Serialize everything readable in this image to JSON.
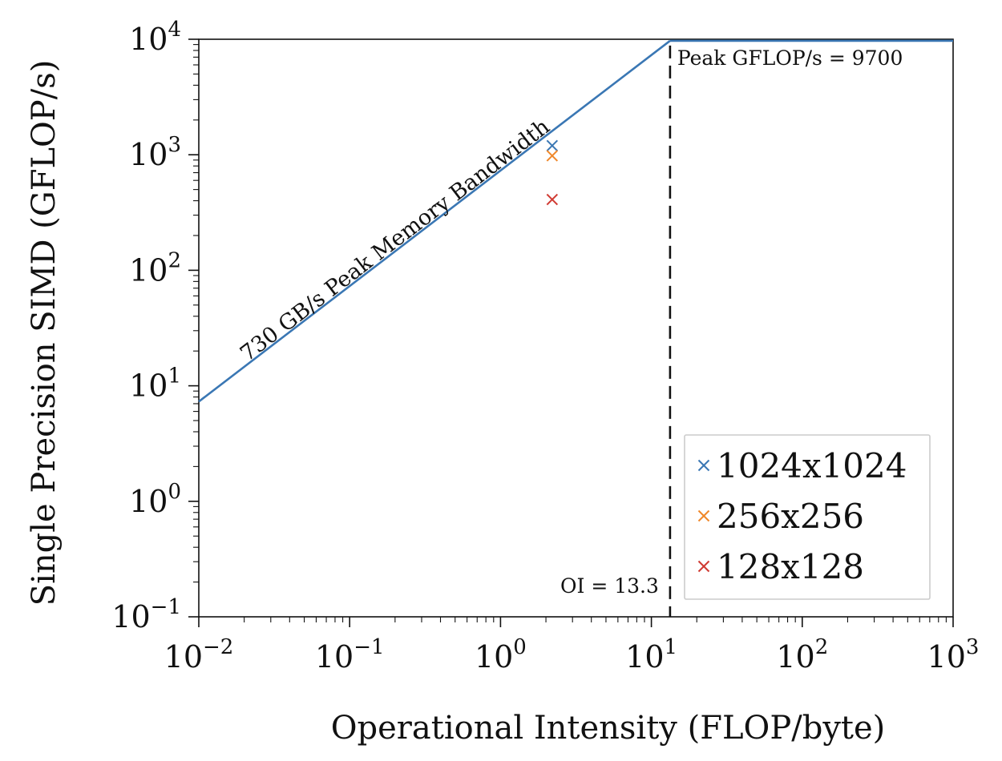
{
  "chart_data": {
    "type": "scatter",
    "xlabel": "Operational Intensity (FLOP/byte)",
    "ylabel": "Single Precision SIMD (GFLOP/s)",
    "xscale": "log",
    "yscale": "log",
    "xlim": [
      0.01,
      1000
    ],
    "ylim": [
      0.1,
      10000
    ],
    "x_tick_labels": [
      {
        "value": 0.01,
        "base": "10",
        "exp": "−2"
      },
      {
        "value": 0.1,
        "base": "10",
        "exp": "−1"
      },
      {
        "value": 1,
        "base": "10",
        "exp": "0"
      },
      {
        "value": 10,
        "base": "10",
        "exp": "1"
      },
      {
        "value": 100,
        "base": "10",
        "exp": "2"
      },
      {
        "value": 1000,
        "base": "10",
        "exp": "3"
      }
    ],
    "y_tick_labels": [
      {
        "value": 0.1,
        "base": "10",
        "exp": "−1"
      },
      {
        "value": 1,
        "base": "10",
        "exp": "0"
      },
      {
        "value": 10,
        "base": "10",
        "exp": "1"
      },
      {
        "value": 100,
        "base": "10",
        "exp": "2"
      },
      {
        "value": 1000,
        "base": "10",
        "exp": "3"
      },
      {
        "value": 10000,
        "base": "10",
        "exp": "4"
      }
    ],
    "roofline": {
      "bandwidth": 730,
      "peak": 9700,
      "color": "#3a77b4",
      "bandwidth_label": "730 GB/s Peak Memory Bandwidth",
      "peak_label": "Peak GFLOP/s = 9700"
    },
    "ridge": {
      "oi": 13.3,
      "label": "OI = 13.3",
      "color": "#111111"
    },
    "series": [
      {
        "name": "1024x1024",
        "color": "#3a77b4",
        "marker": "x",
        "x": 2.2,
        "y": 1200
      },
      {
        "name": "256x256",
        "color": "#f0882a",
        "marker": "x",
        "x": 2.2,
        "y": 980
      },
      {
        "name": "128x128",
        "color": "#d03a32",
        "marker": "x",
        "x": 2.2,
        "y": 410
      }
    ],
    "legend_position": "bottom-right",
    "grid": false
  }
}
